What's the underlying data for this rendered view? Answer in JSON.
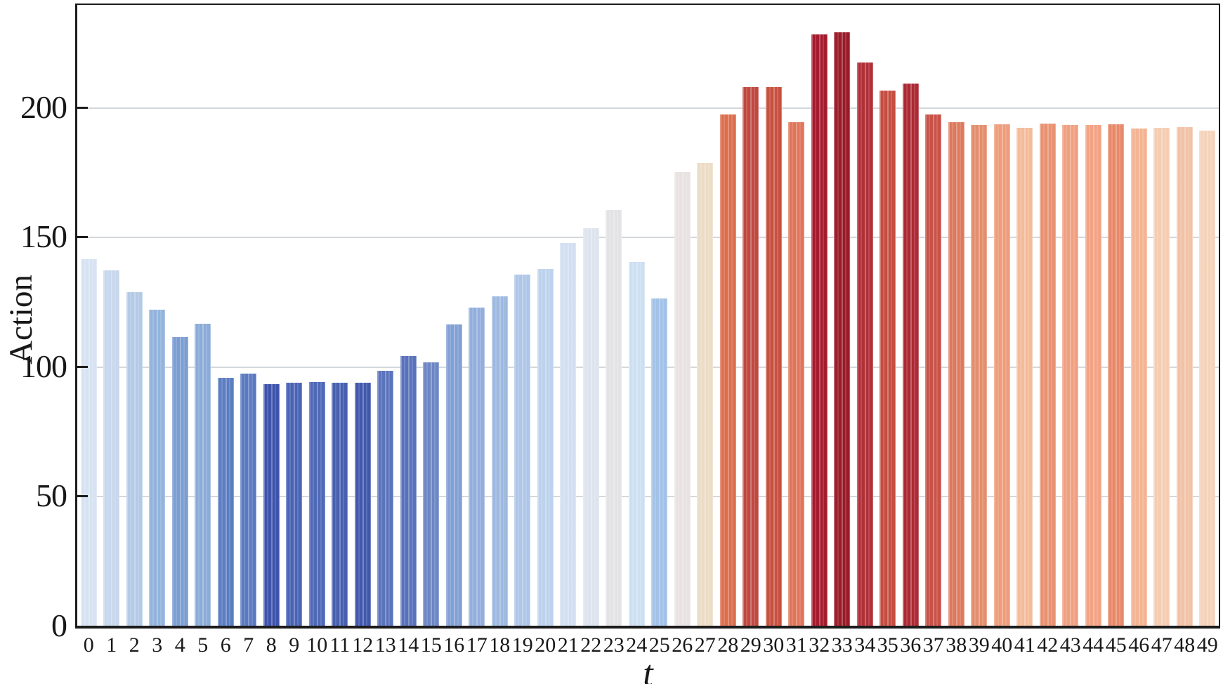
{
  "chart_data": {
    "type": "bar",
    "title": "",
    "xlabel": "t",
    "ylabel": "Action",
    "x": [
      0,
      1,
      2,
      3,
      4,
      5,
      6,
      7,
      8,
      9,
      10,
      11,
      12,
      13,
      14,
      15,
      16,
      17,
      18,
      19,
      20,
      21,
      22,
      23,
      24,
      25,
      26,
      27,
      28,
      29,
      30,
      31,
      32,
      33,
      34,
      35,
      36,
      37,
      38,
      39,
      40,
      41,
      42,
      43,
      44,
      45,
      46,
      47,
      48,
      49
    ],
    "values": [
      141.5,
      137.0,
      128.8,
      121.8,
      111.3,
      116.4,
      95.7,
      97.3,
      93.3,
      93.8,
      94.1,
      93.8,
      93.8,
      98.4,
      104.1,
      101.6,
      116.2,
      122.6,
      127.0,
      135.6,
      137.7,
      147.7,
      153.3,
      160.3,
      140.4,
      126.2,
      174.9,
      178.6,
      197.2,
      207.7,
      207.7,
      194.3,
      228.2,
      229.0,
      217.2,
      206.4,
      209.1,
      197.2,
      194.3,
      193.2,
      193.5,
      192.1,
      193.7,
      193.2,
      193.2,
      193.5,
      191.9,
      192.1,
      192.4,
      191.0
    ],
    "bar_colors": [
      "#d7e3f2",
      "#c7d7ec",
      "#b3cae6",
      "#93b3dc",
      "#7b9dd2",
      "#8babd8",
      "#5c7dc2",
      "#5a79c0",
      "#3e53ac",
      "#4a63b4",
      "#4f68b8",
      "#4760b0",
      "#4158ac",
      "#5b74bc",
      "#5a72bb",
      "#6d86c4",
      "#81a0d4",
      "#92aedc",
      "#9db9e0",
      "#aec6e8",
      "#bdd2ec",
      "#d2dff2",
      "#dee4ee",
      "#e3e2e5",
      "#cddff2",
      "#a2c2e8",
      "#e9e2e2",
      "#ebdcc6",
      "#dc6e4e",
      "#c04840",
      "#c8513f",
      "#e0755a",
      "#a51a2e",
      "#9a1b28",
      "#b03038",
      "#c64d42",
      "#ac2a34",
      "#c85248",
      "#dc7a5e",
      "#e48e6c",
      "#ee9c7a",
      "#f4bb9a",
      "#e89271",
      "#f0a080",
      "#f3a284",
      "#e8896a",
      "#f4b493",
      "#f5cdb2",
      "#f2c2a6",
      "#f5d3bb"
    ],
    "color_scheme": "diverging blue-to-red (coolwarm-like), dark blue at minimum ~93, near-white around ~160-175, dark red at maximum ~229",
    "ylim": [
      0,
      239.5
    ],
    "yticks": [
      0,
      50,
      100,
      150,
      200
    ],
    "ytick_labels": [
      "0",
      "50",
      "100",
      "150",
      "200"
    ],
    "gridlines_at": [
      50,
      100,
      150,
      200
    ],
    "grid": true,
    "legend": "none",
    "bar_texture": "thin vertical light stripes (overlapping translucent samples)"
  },
  "colors": {
    "background": "#ffffff",
    "spine": "#1c1c1c",
    "grid": "#d3d8dd",
    "tick_text": "#181818"
  }
}
